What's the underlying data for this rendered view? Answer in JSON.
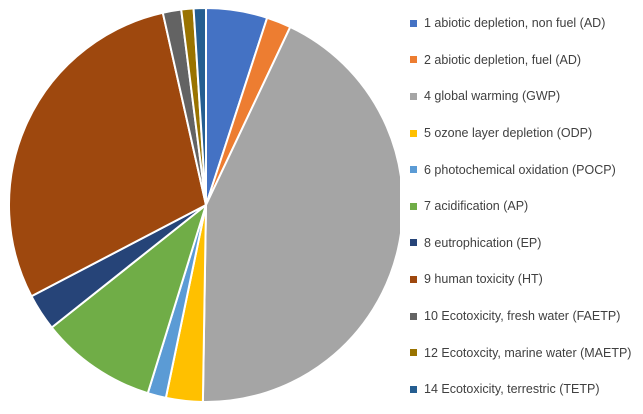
{
  "chart_data": {
    "type": "pie",
    "title": "",
    "legend_position": "right",
    "slices": [
      {
        "label": "1 abiotic depletion, non fuel (AD)",
        "value": 5.0,
        "color": "#4472C4"
      },
      {
        "label": "2 abiotic depletion, fuel (AD)",
        "value": 2.0,
        "color": "#ED7D31"
      },
      {
        "label": "4 global warming (GWP)",
        "value": 43.0,
        "color": "#A5A5A5"
      },
      {
        "label": "5 ozone layer depletion (ODP)",
        "value": 3.0,
        "color": "#FFC000"
      },
      {
        "label": "6 photochemical oxidation (POCP)",
        "value": 1.5,
        "color": "#5B9BD5"
      },
      {
        "label": "7 acidification (AP)",
        "value": 9.5,
        "color": "#70AD47"
      },
      {
        "label": "8 eutrophication (EP)",
        "value": 3.0,
        "color": "#264478"
      },
      {
        "label": "9 human toxicity (HT)",
        "value": 29.0,
        "color": "#9E480E"
      },
      {
        "label": "10 Ecotoxicity, fresh water (FAETP)",
        "value": 1.5,
        "color": "#636363"
      },
      {
        "label": "12 Ecotoxcity, marine water (MAETP)",
        "value": 1.0,
        "color": "#997300"
      },
      {
        "label": "14 Ecotoxicity, terrestric (TETP)",
        "value": 1.0,
        "color": "#255E91"
      }
    ]
  }
}
